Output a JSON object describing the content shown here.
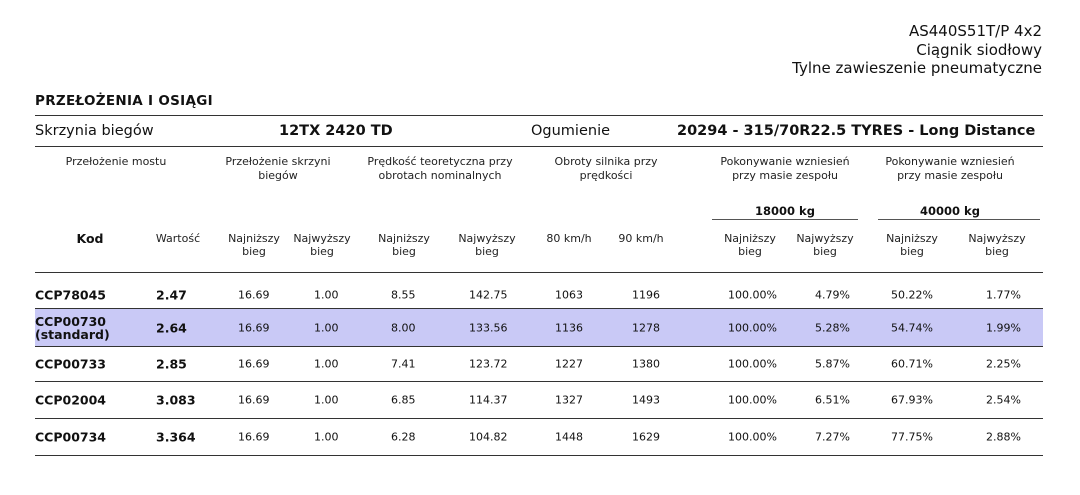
{
  "header": {
    "model": "AS440S51T/P 4x2",
    "vehicle_type": "Ciągnik siodłowy",
    "suspension": "Tylne zawieszenie pneumatyczne"
  },
  "section_title": "PRZEŁOŻENIA I OSIĄGI",
  "gearbox": {
    "label": "Skrzynia biegów",
    "value": "12TX 2420 TD",
    "tyres_label": "Ogumienie",
    "tyres_value": "20294 - 315/70R22.5 TYRES - Long Distance"
  },
  "groups": {
    "axle_ratio": "Przełożenie mostu",
    "gearbox_ratio": "Przełożenie skrzyni biegów",
    "speed": "Prędkość teoretyczna przy obrotach nominalnych",
    "engine_rpm": "Obroty silnika przy prędkości",
    "gradeability_1": "Pokonywanie wzniesień przy masie zespołu",
    "gradeability_2": "Pokonywanie wzniesień przy masie zespołu",
    "weight_1": "18000 kg",
    "weight_2": "40000 kg"
  },
  "columns": {
    "kod": "Kod",
    "wartosc": "Wartość",
    "lowest": "Najniższy bieg",
    "highest": "Najwyższy bieg",
    "kmh80": "80 km/h",
    "kmh90": "90 km/h"
  },
  "rows": [
    {
      "code": "CCP78045",
      "value": "2.47",
      "g_lo": "16.69",
      "g_hi": "1.00",
      "s_lo": "8.55",
      "s_hi": "142.75",
      "r80": "1063",
      "r90": "1196",
      "a_lo": "100.00%",
      "a_hi": "4.79%",
      "b_lo": "50.22%",
      "b_hi": "1.77%"
    },
    {
      "code": "CCP00730 (standard)",
      "value": "2.64",
      "g_lo": "16.69",
      "g_hi": "1.00",
      "s_lo": "8.00",
      "s_hi": "133.56",
      "r80": "1136",
      "r90": "1278",
      "a_lo": "100.00%",
      "a_hi": "5.28%",
      "b_lo": "54.74%",
      "b_hi": "1.99%"
    },
    {
      "code": "CCP00733",
      "value": "2.85",
      "g_lo": "16.69",
      "g_hi": "1.00",
      "s_lo": "7.41",
      "s_hi": "123.72",
      "r80": "1227",
      "r90": "1380",
      "a_lo": "100.00%",
      "a_hi": "5.87%",
      "b_lo": "60.71%",
      "b_hi": "2.25%"
    },
    {
      "code": "CCP02004",
      "value": "3.083",
      "g_lo": "16.69",
      "g_hi": "1.00",
      "s_lo": "6.85",
      "s_hi": "114.37",
      "r80": "1327",
      "r90": "1493",
      "a_lo": "100.00%",
      "a_hi": "6.51%",
      "b_lo": "67.93%",
      "b_hi": "2.54%"
    },
    {
      "code": "CCP00734",
      "value": "3.364",
      "g_lo": "16.69",
      "g_hi": "1.00",
      "s_lo": "6.28",
      "s_hi": "104.82",
      "r80": "1448",
      "r90": "1629",
      "a_lo": "100.00%",
      "a_hi": "7.27%",
      "b_lo": "77.75%",
      "b_hi": "2.88%"
    }
  ],
  "highlighted_row": 1,
  "colors": {
    "highlight": "#c9c9f6",
    "text": "#111111"
  }
}
